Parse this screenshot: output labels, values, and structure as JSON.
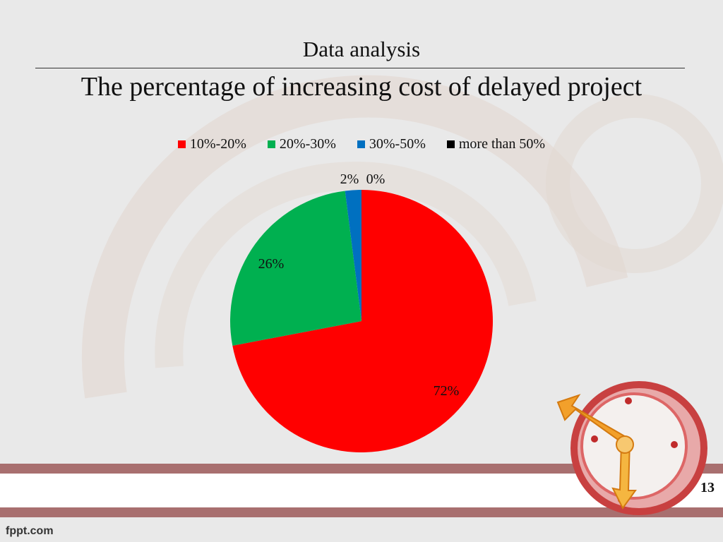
{
  "slide": {
    "title": "Data analysis",
    "subtitle": "The percentage of increasing cost of delayed project",
    "page_number": "13",
    "footer": "fppt.com"
  },
  "chart_data": {
    "type": "pie",
    "categories": [
      "10%-20%",
      "20%-30%",
      "30%-50%",
      "more than 50%"
    ],
    "values": [
      72,
      26,
      2,
      0
    ],
    "data_labels": [
      "72%",
      "26%",
      "2%",
      "0%"
    ],
    "colors": [
      "#ff0000",
      "#00b050",
      "#0070c0",
      "#000000"
    ],
    "legend_position": "top",
    "title": ""
  }
}
